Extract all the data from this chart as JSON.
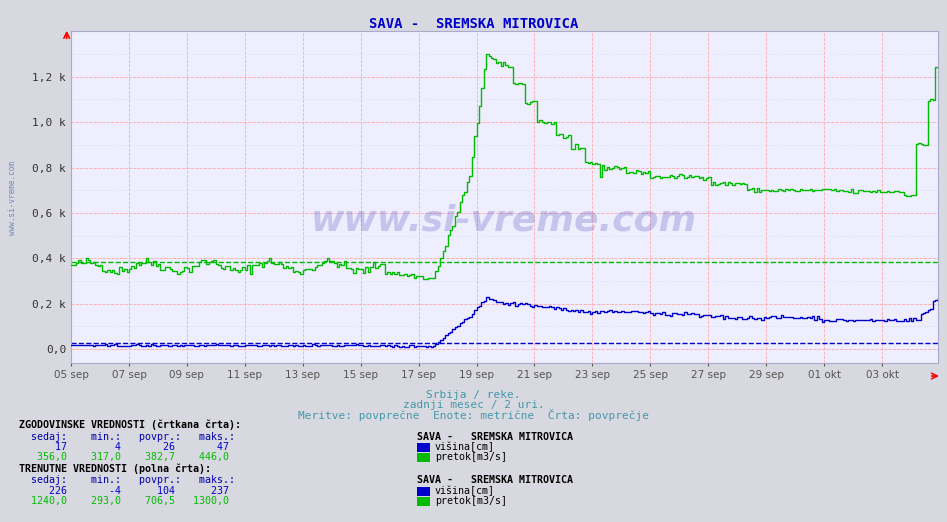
{
  "title": "SAVA -  SREMSKA MITROVICA",
  "title_color": "#0000cc",
  "bg_color": "#d8d8e0",
  "plot_bg_color": "#eeeeff",
  "xlabel1": "Srbija / reke.",
  "xlabel2": "zadnji mesec / 2 uri.",
  "xlabel3": "Meritve: povprečne  Enote: metrične  Črta: povprečje",
  "xlabel_color": "#4499aa",
  "ymax": 1400,
  "ymin": -60,
  "yticks": [
    0,
    200,
    400,
    600,
    800,
    1000,
    1200
  ],
  "ytick_labels": [
    "0,0",
    "0,2 k",
    "0,4 k",
    "0,6 k",
    "0,8 k",
    "1,0 k",
    "1,2 k"
  ],
  "green_avg": 382.7,
  "blue_avg": 26,
  "green_color": "#00bb00",
  "blue_color": "#0000cc",
  "grid_major_color": "#ffaaaa",
  "grid_minor_color": "#ccccff",
  "watermark": "www.si-vreme.com",
  "n_points": 360,
  "tick_labels": [
    "05 sep",
    "07 sep",
    "09 sep",
    "11 sep",
    "13 sep",
    "15 sep",
    "17 sep",
    "19 sep",
    "21 sep",
    "23 sep",
    "25 sep",
    "27 sep",
    "29 sep",
    "01 okt",
    "03 okt"
  ],
  "hist_label1": "ZGODOVINSKE VREDNOSTI (črtkana črta):",
  "hist_header": "  sedaj:    min.:   povpr.:   maks.:",
  "hist_blue_vals": "      17        4       26       47",
  "hist_green_vals": "   356,0    317,0    382,7    446,0",
  "curr_label1": "TRENUTNE VREDNOSTI (polna črta):",
  "curr_header": "  sedaj:    min.:   povpr.:   maks.:",
  "curr_blue_vals": "     226       -4      104      237",
  "curr_green_vals": "  1240,0    293,0    706,5   1300,0",
  "station_label": "SAVA -   SREMSKA MITROVICA",
  "visina_label": "višina[cm]",
  "pretok_label": "pretok[m3/s]",
  "table_header_color": "#000000",
  "table_val_color_blue": "#0000cc",
  "table_val_color_green": "#00bb00",
  "table_label_color": "#0000aa"
}
